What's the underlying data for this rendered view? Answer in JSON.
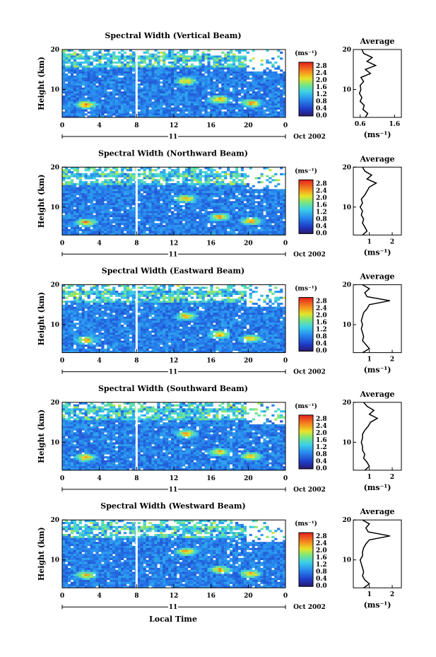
{
  "chart_data": [
    {
      "type": "heatmap",
      "title": "Spectral Width (Vertical Beam)",
      "ylabel": "Height (km)",
      "xticks": [
        "0",
        "4",
        "8",
        "12",
        "16",
        "20",
        "0"
      ],
      "yticks": [
        "20",
        "10"
      ],
      "date_label": "11",
      "month_label": "Oct 2002",
      "colorbar_unit": "(ms⁻¹)",
      "colorbar_ticks": [
        "2.8",
        "2.4",
        "2.0",
        "1.6",
        "1.2",
        "0.8",
        "0.4",
        "0.0"
      ],
      "avg_title": "Average",
      "avg_xticks": [
        "0.6",
        "1.6"
      ],
      "avg_yticks": [
        "20",
        "10"
      ],
      "avg_xlabel": "(ms⁻¹)",
      "avg_profile": {
        "xlim": [
          0.4,
          1.8
        ],
        "height": [
          3,
          4,
          5,
          6,
          7,
          8,
          9,
          10,
          11,
          12,
          13,
          14,
          15,
          16,
          17,
          18,
          19,
          20
        ],
        "width": [
          0.75,
          0.82,
          0.68,
          0.72,
          0.6,
          0.65,
          0.58,
          0.62,
          0.6,
          0.7,
          0.62,
          0.9,
          0.75,
          1.05,
          0.8,
          0.95,
          0.7,
          0.65
        ]
      }
    },
    {
      "type": "heatmap",
      "title": "Spectral Width (Northward Beam)",
      "ylabel": "Height (km)",
      "xticks": [
        "0",
        "4",
        "8",
        "12",
        "16",
        "20",
        "0"
      ],
      "yticks": [
        "20",
        "10"
      ],
      "date_label": "11",
      "month_label": "Oct 2002",
      "colorbar_unit": "(ms⁻¹)",
      "colorbar_ticks": [
        "2.8",
        "2.4",
        "2.0",
        "1.6",
        "1.2",
        "0.8",
        "0.4",
        "0.0"
      ],
      "avg_title": "Average",
      "avg_xticks": [
        "1",
        "2"
      ],
      "avg_yticks": [
        "20",
        "10"
      ],
      "avg_xlabel": "(ms⁻¹)",
      "avg_profile": {
        "xlim": [
          0.3,
          2.4
        ],
        "height": [
          3,
          4,
          5,
          6,
          7,
          8,
          9,
          10,
          11,
          12,
          13,
          14,
          15,
          16,
          17,
          18,
          19,
          20
        ],
        "width": [
          0.7,
          0.9,
          0.8,
          0.7,
          0.75,
          0.65,
          0.7,
          0.6,
          0.7,
          0.65,
          0.8,
          0.9,
          1.0,
          1.3,
          0.9,
          1.1,
          0.8,
          0.7
        ]
      }
    },
    {
      "type": "heatmap",
      "title": "Spectral Width (Eastward Beam)",
      "ylabel": "Height (km)",
      "xticks": [
        "0",
        "4",
        "8",
        "12",
        "16",
        "20",
        "0"
      ],
      "yticks": [
        "20",
        "10"
      ],
      "date_label": "11",
      "month_label": "Oct 2002",
      "colorbar_unit": "(ms⁻¹)",
      "colorbar_ticks": [
        "2.8",
        "2.4",
        "2.0",
        "1.6",
        "1.2",
        "0.8",
        "0.4",
        "0.0"
      ],
      "avg_title": "Average",
      "avg_xticks": [
        "1",
        "2"
      ],
      "avg_yticks": [
        "20",
        "10"
      ],
      "avg_xlabel": "(ms⁻¹)",
      "avg_profile": {
        "xlim": [
          0.3,
          2.4
        ],
        "height": [
          3,
          4,
          5,
          6,
          7,
          8,
          9,
          10,
          11,
          12,
          13,
          14,
          15,
          16,
          17,
          18,
          19,
          20
        ],
        "width": [
          0.7,
          1.0,
          0.85,
          0.7,
          0.75,
          0.7,
          0.65,
          0.7,
          0.65,
          0.7,
          0.75,
          0.9,
          1.0,
          1.9,
          0.9,
          0.8,
          1.0,
          0.7
        ]
      }
    },
    {
      "type": "heatmap",
      "title": "Spectral Width (Southward Beam)",
      "ylabel": "Height (km)",
      "xticks": [
        "0",
        "4",
        "8",
        "12",
        "16",
        "20",
        "0"
      ],
      "yticks": [
        "20",
        "10"
      ],
      "date_label": "11",
      "month_label": "Oct 2002",
      "colorbar_unit": "(ms⁻¹)",
      "colorbar_ticks": [
        "2.8",
        "2.4",
        "2.0",
        "1.6",
        "1.2",
        "0.8",
        "0.4",
        "0.0"
      ],
      "avg_title": "Average",
      "avg_xticks": [
        "1",
        "2"
      ],
      "avg_yticks": [
        "20",
        "10"
      ],
      "avg_xlabel": "(ms⁻¹)",
      "avg_profile": {
        "xlim": [
          0.3,
          2.4
        ],
        "height": [
          3,
          4,
          5,
          6,
          7,
          8,
          9,
          10,
          11,
          12,
          13,
          14,
          15,
          16,
          17,
          18,
          19,
          20
        ],
        "width": [
          0.8,
          1.0,
          0.9,
          0.75,
          0.8,
          0.7,
          0.7,
          0.65,
          0.7,
          0.7,
          0.8,
          0.95,
          1.05,
          1.35,
          1.0,
          1.2,
          0.9,
          0.75
        ]
      }
    },
    {
      "type": "heatmap",
      "title": "Spectral Width (Westward Beam)",
      "ylabel": "Height (km)",
      "xticks": [
        "0",
        "4",
        "8",
        "12",
        "16",
        "20",
        "0"
      ],
      "yticks": [
        "20",
        "10"
      ],
      "date_label": "11",
      "month_label": "Oct 2002",
      "colorbar_unit": "(ms⁻¹)",
      "colorbar_ticks": [
        "2.8",
        "2.4",
        "2.0",
        "1.6",
        "1.2",
        "0.8",
        "0.4",
        "0.0"
      ],
      "avg_title": "Average",
      "avg_xticks": [
        "1",
        "2"
      ],
      "avg_yticks": [
        "20",
        "10"
      ],
      "avg_xlabel": "(ms⁻¹)",
      "avg_profile": {
        "xlim": [
          0.3,
          2.4
        ],
        "height": [
          3,
          4,
          5,
          6,
          7,
          8,
          9,
          10,
          11,
          12,
          13,
          14,
          15,
          16,
          17,
          18,
          19,
          20
        ],
        "width": [
          0.75,
          1.0,
          0.8,
          0.7,
          0.75,
          0.7,
          0.65,
          0.6,
          0.7,
          0.7,
          0.75,
          0.85,
          1.0,
          1.9,
          0.95,
          0.85,
          1.0,
          0.7
        ]
      }
    }
  ],
  "xlabel": "Local Time"
}
